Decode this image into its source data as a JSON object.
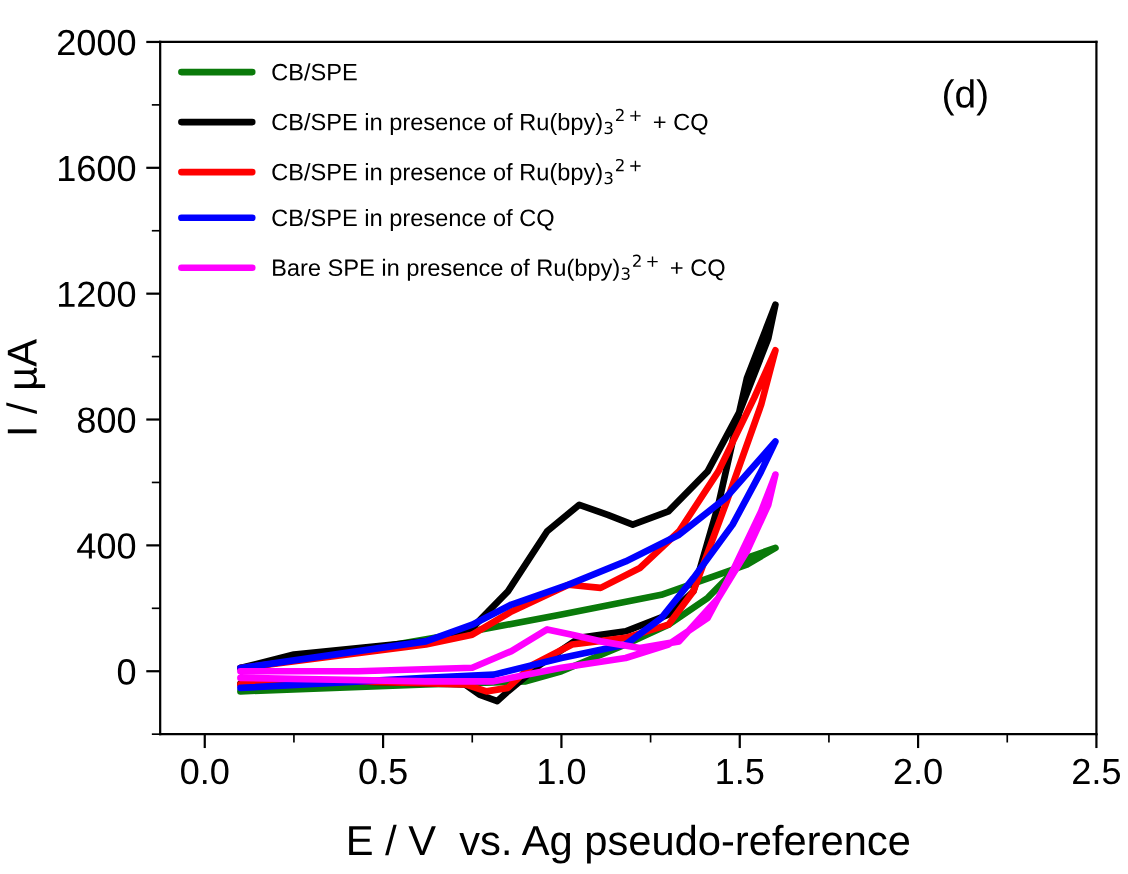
{
  "chart_data": {
    "type": "line",
    "xlabel": "E / V  vs. Ag pseudo-reference",
    "ylabel": "I / µA",
    "annotations": [
      "(d)"
    ],
    "xlim": [
      -0.125,
      2.5
    ],
    "ylim": [
      -200,
      2000
    ],
    "xticks": [
      {
        "value": 0.0,
        "label": "0.0"
      },
      {
        "value": 0.25,
        "label": null
      },
      {
        "value": 0.5,
        "label": "0.5"
      },
      {
        "value": 0.75,
        "label": null
      },
      {
        "value": 1.0,
        "label": "1.0"
      },
      {
        "value": 1.25,
        "label": null
      },
      {
        "value": 1.5,
        "label": "1.5"
      },
      {
        "value": 1.75,
        "label": null
      },
      {
        "value": 2.0,
        "label": "2.0"
      },
      {
        "value": 2.25,
        "label": null
      },
      {
        "value": 2.5,
        "label": "2.5"
      }
    ],
    "yticks": [
      {
        "value": -200,
        "label": null
      },
      0,
      {
        "value": 200,
        "label": null
      },
      400,
      {
        "value": 600,
        "label": null
      },
      800,
      {
        "value": 1000,
        "label": null
      },
      1200,
      {
        "value": 1400,
        "label": null
      },
      1600,
      {
        "value": 1800,
        "label": null
      },
      2000
    ],
    "grid": false,
    "legend": "top left",
    "marker": "none",
    "line_style": "solid",
    "series": [
      {
        "name": "CB/SPE",
        "color": "#0a7a0a",
        "x": [
          0.1,
          0.43,
          0.75,
          1.0,
          1.28,
          1.52,
          1.6,
          1.52,
          1.41,
          1.3,
          1.18,
          1.0,
          0.9,
          0.62,
          0.1
        ],
        "values": [
          10,
          64,
          127,
          180,
          243,
          339,
          392,
          360,
          233,
          148,
          85,
          0,
          -32,
          -42,
          -64
        ]
      },
      {
        "name": "CB/SPE in presence of Ru(bpy)$_{3}$$^{2+}$ + CQ",
        "color": "#000000",
        "x": [
          0.1,
          0.25,
          0.62,
          0.75,
          0.85,
          0.96,
          1.05,
          1.13,
          1.2,
          1.3,
          1.41,
          1.5,
          1.58,
          1.6,
          1.52,
          1.44,
          1.37,
          1.3,
          1.18,
          1.05,
          0.94,
          0.85,
          0.82,
          0.77,
          0.73,
          0.43,
          0.1
        ],
        "values": [
          10,
          53,
          95,
          138,
          254,
          445,
          529,
          497,
          466,
          508,
          635,
          826,
          1058,
          1165,
          931,
          529,
          254,
          180,
          127,
          106,
          21,
          -64,
          -95,
          -74,
          -42,
          -32,
          -40
        ]
      },
      {
        "name": "CB/SPE in presence of Ru(bpy)$_{3}$$^{2+}$",
        "color": "#ff0000",
        "x": [
          0.1,
          0.62,
          0.75,
          0.86,
          1.02,
          1.11,
          1.22,
          1.33,
          1.44,
          1.54,
          1.6,
          1.56,
          1.46,
          1.37,
          1.3,
          1.18,
          1.03,
          0.92,
          0.85,
          0.79,
          0.73,
          0.43,
          0.1
        ],
        "values": [
          10,
          85,
          116,
          190,
          275,
          265,
          328,
          445,
          635,
          868,
          1020,
          847,
          529,
          254,
          148,
          106,
          85,
          21,
          -53,
          -64,
          -42,
          -32,
          -42
        ]
      },
      {
        "name": "CB/SPE in presence of CQ",
        "color": "#0000ff",
        "x": [
          0.1,
          0.62,
          0.75,
          0.86,
          1.02,
          1.18,
          1.33,
          1.46,
          1.6,
          1.56,
          1.48,
          1.37,
          1.28,
          1.18,
          1.0,
          0.81,
          0.62,
          0.1
        ],
        "values": [
          10,
          95,
          148,
          212,
          275,
          349,
          434,
          550,
          730,
          635,
          466,
          296,
          169,
          85,
          42,
          -11,
          -21,
          -53
        ]
      },
      {
        "name": "Bare SPE in presence of Ru(bpy)$_{3}$$^{2+}$ + CQ",
        "color": "#ff00ff",
        "x": [
          0.1,
          0.43,
          0.75,
          0.86,
          0.96,
          1.03,
          1.11,
          1.22,
          1.33,
          1.44,
          1.52,
          1.58,
          1.6,
          1.56,
          1.48,
          1.41,
          1.3,
          1.18,
          1.0,
          0.81,
          0.62,
          0.1
        ],
        "values": [
          0,
          0,
          11,
          64,
          133,
          116,
          95,
          74,
          95,
          233,
          381,
          529,
          625,
          508,
          318,
          169,
          85,
          42,
          11,
          -32,
          -32,
          -21
        ]
      }
    ]
  }
}
